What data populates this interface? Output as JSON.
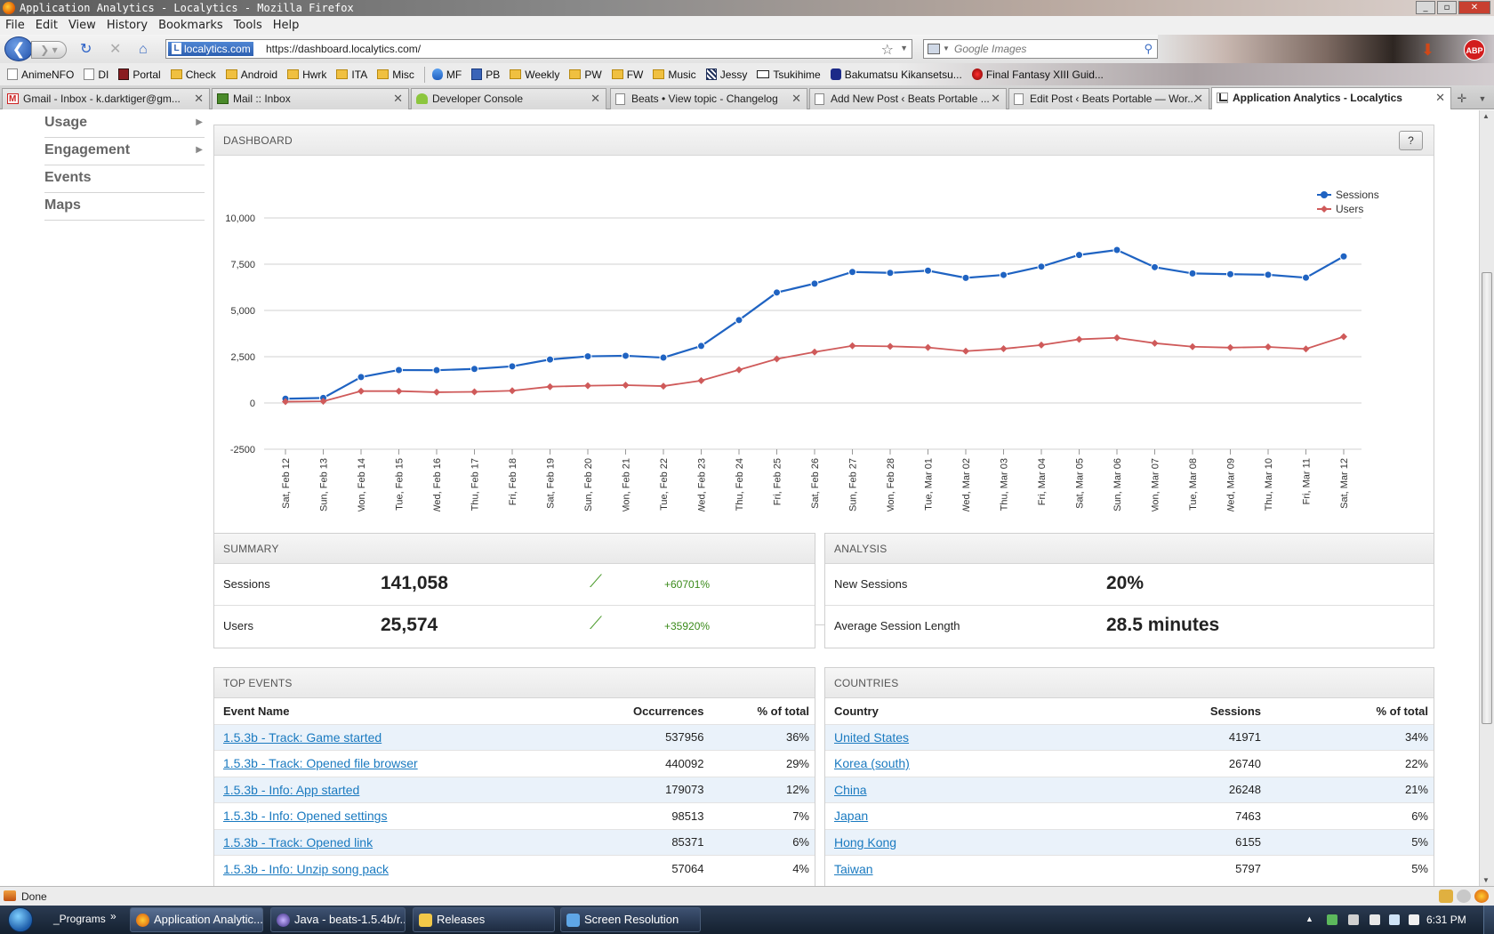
{
  "window": {
    "title": "Application Analytics - Localytics - Mozilla Firefox"
  },
  "menu": [
    "File",
    "Edit",
    "View",
    "History",
    "Bookmarks",
    "Tools",
    "Help"
  ],
  "nav": {
    "site_identity": "localytics.com",
    "url": "https://dashboard.localytics.com/",
    "search_placeholder": "Google Images",
    "addon_abp": "ABP"
  },
  "bookmarks": [
    {
      "label": "AnimeNFO",
      "icon": "page"
    },
    {
      "label": "DI",
      "icon": "page"
    },
    {
      "label": "Portal",
      "icon": "penn"
    },
    {
      "label": "Check",
      "icon": "folder"
    },
    {
      "label": "Android",
      "icon": "folder"
    },
    {
      "label": "Hwrk",
      "icon": "folder"
    },
    {
      "label": "ITA",
      "icon": "folder"
    },
    {
      "label": "Misc",
      "icon": "folder"
    },
    {
      "label": "MF",
      "icon": "fire"
    },
    {
      "label": "PB",
      "icon": "pb"
    },
    {
      "label": "Weekly",
      "icon": "folder"
    },
    {
      "label": "PW",
      "icon": "folder"
    },
    {
      "label": "FW",
      "icon": "folder"
    },
    {
      "label": "Music",
      "icon": "folder"
    },
    {
      "label": "Jessy",
      "icon": "jessy"
    },
    {
      "label": "Tsukihime",
      "icon": "card"
    },
    {
      "label": "Bakumatsu Kikansetsu...",
      "icon": "baku"
    },
    {
      "label": "Final Fantasy XIII Guid...",
      "icon": "ffxiii"
    }
  ],
  "tabs": [
    {
      "label": "Gmail - Inbox - k.darktiger@gm...",
      "icon": "gmail"
    },
    {
      "label": "Mail :: Inbox",
      "icon": "mail"
    },
    {
      "label": "Developer Console",
      "icon": "android"
    },
    {
      "label": "Beats • View topic - Changelog",
      "icon": "doc"
    },
    {
      "label": "Add New Post ‹ Beats Portable ...",
      "icon": "doc"
    },
    {
      "label": "Edit Post ‹ Beats Portable — Wor...",
      "icon": "doc"
    },
    {
      "label": "Application Analytics - Localytics",
      "icon": "loc"
    }
  ],
  "sidebar": [
    {
      "label": "Usage",
      "has_arrow": true
    },
    {
      "label": "Engagement",
      "has_arrow": true
    },
    {
      "label": "Events",
      "has_arrow": false
    },
    {
      "label": "Maps",
      "has_arrow": false
    }
  ],
  "dashboard": {
    "title": "DASHBOARD",
    "help_label": "?"
  },
  "chart_data": {
    "type": "line",
    "x": [
      "Sat, Feb 12",
      "Sun, Feb 13",
      "Mon, Feb 14",
      "Tue, Feb 15",
      "Wed, Feb 16",
      "Thu, Feb 17",
      "Fri, Feb 18",
      "Sat, Feb 19",
      "Sun, Feb 20",
      "Mon, Feb 21",
      "Tue, Feb 22",
      "Wed, Feb 23",
      "Thu, Feb 24",
      "Fri, Feb 25",
      "Sat, Feb 26",
      "Sun, Feb 27",
      "Mon, Feb 28",
      "Tue, Mar 01",
      "Wed, Mar 02",
      "Thu, Mar 03",
      "Fri, Mar 04",
      "Sat, Mar 05",
      "Sun, Mar 06",
      "Mon, Mar 07",
      "Tue, Mar 08",
      "Wed, Mar 09",
      "Thu, Mar 10",
      "Fri, Mar 11",
      "Sat, Mar 12"
    ],
    "series": [
      {
        "name": "Sessions",
        "color": "#1f63c2",
        "marker": "circle",
        "values": [
          230,
          270,
          1400,
          1780,
          1770,
          1840,
          1980,
          2350,
          2520,
          2550,
          2450,
          3080,
          4480,
          5970,
          6450,
          7080,
          7030,
          7150,
          6760,
          6920,
          7370,
          8000,
          8270,
          7340,
          7000,
          6960,
          6930,
          6770,
          7920
        ]
      },
      {
        "name": "Users",
        "color": "#cf5a5a",
        "marker": "diamond",
        "values": [
          70,
          90,
          640,
          640,
          580,
          600,
          660,
          880,
          930,
          960,
          910,
          1210,
          1790,
          2380,
          2750,
          3090,
          3060,
          3000,
          2800,
          2930,
          3130,
          3440,
          3520,
          3230,
          3040,
          2990,
          3030,
          2920,
          3580
        ]
      }
    ],
    "yticks": [
      "10,000",
      "7,500",
      "5,000",
      "2,500",
      "0",
      "-2500"
    ],
    "ylim": [
      -2500,
      10000
    ],
    "legend": "top-right",
    "grid": true
  },
  "summary": {
    "title": "SUMMARY",
    "rows": [
      {
        "label": "Sessions",
        "value": "141,058",
        "change": "+60701%"
      },
      {
        "label": "Users",
        "value": "25,574",
        "change": "+35920%"
      }
    ]
  },
  "analysis": {
    "title": "ANALYSIS",
    "rows": [
      {
        "label": "New Sessions",
        "value": "20%"
      },
      {
        "label": "Average Session Length",
        "value": "28.5 minutes"
      }
    ]
  },
  "top_events": {
    "title": "TOP EVENTS",
    "columns": [
      "Event Name",
      "Occurrences",
      "% of total"
    ],
    "rows": [
      [
        "1.5.3b - Track: Game started",
        "537956",
        "36%"
      ],
      [
        "1.5.3b - Track: Opened file browser",
        "440092",
        "29%"
      ],
      [
        "1.5.3b - Info: App started",
        "179073",
        "12%"
      ],
      [
        "1.5.3b - Info: Opened settings",
        "98513",
        "7%"
      ],
      [
        "1.5.3b - Track: Opened link",
        "85371",
        "6%"
      ],
      [
        "1.5.3b - Info: Unzip song pack",
        "57064",
        "4%"
      ]
    ]
  },
  "countries": {
    "title": "COUNTRIES",
    "columns": [
      "Country",
      "Sessions",
      "% of total"
    ],
    "rows": [
      [
        "United States",
        "41971",
        "34%"
      ],
      [
        "Korea (south)",
        "26740",
        "22%"
      ],
      [
        "China",
        "26248",
        "21%"
      ],
      [
        "Japan",
        "7463",
        "6%"
      ],
      [
        "Hong Kong",
        "6155",
        "5%"
      ],
      [
        "Taiwan",
        "5797",
        "5%"
      ]
    ]
  },
  "status": {
    "text": "Done"
  },
  "taskbar": {
    "programs_label": "_Programs",
    "overflow": "»",
    "buttons": [
      {
        "label": "Application Analytic...",
        "icon": "ffox"
      },
      {
        "label": "Java - beats-1.5.4b/r...",
        "icon": "eclipse"
      },
      {
        "label": "Releases",
        "icon": "folder"
      },
      {
        "label": "Screen Resolution",
        "icon": "screen"
      }
    ],
    "clock": "6:31 PM"
  }
}
